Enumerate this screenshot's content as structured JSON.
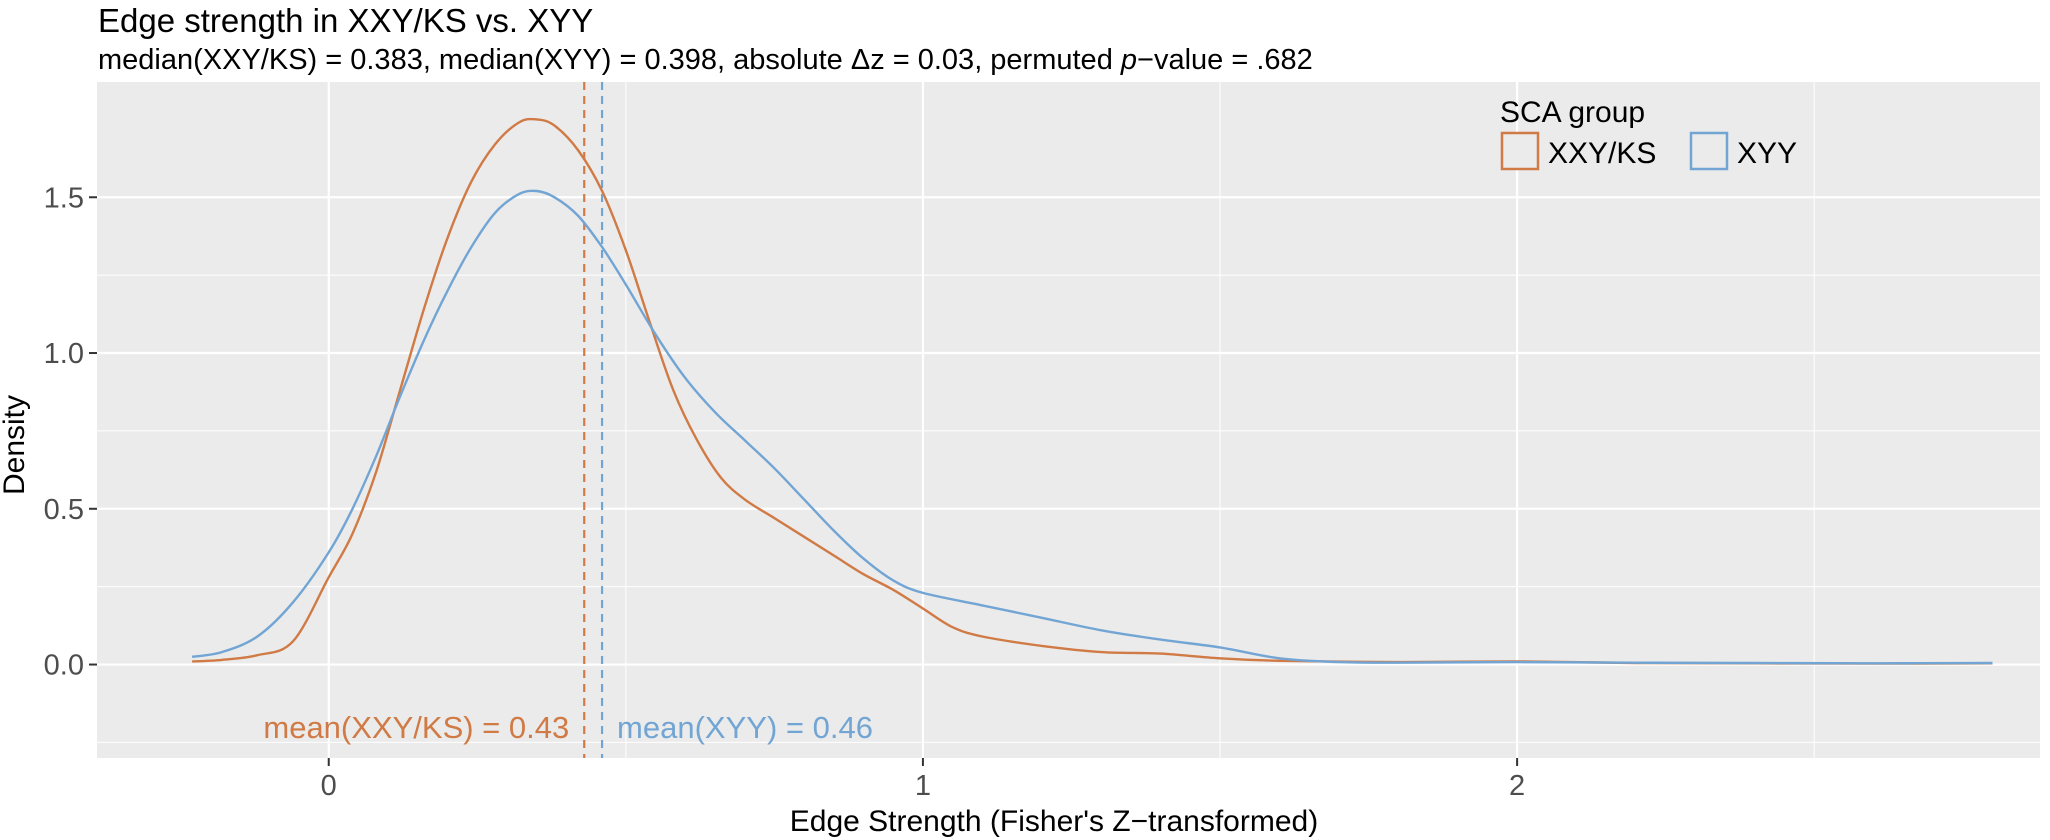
{
  "chart_data": {
    "type": "area",
    "title": "Edge strength in XXY/KS vs. XYY",
    "subtitle": {
      "pre": "median(XXY/KS) = 0.383, median(XYY) = 0.398, absolute Δz = 0.03, permuted ",
      "p_italic": "p",
      "post": "−value = .682"
    },
    "xlabel": "Edge Strength (Fisher's Z−transformed)",
    "ylabel": "Density",
    "xlim": [
      -0.39,
      2.88
    ],
    "ylim": [
      -0.3,
      1.87
    ],
    "xticks": [
      0,
      1,
      2
    ],
    "xtick_labels": [
      "0",
      "1",
      "2"
    ],
    "yticks": [
      0.0,
      0.5,
      1.0,
      1.5
    ],
    "ytick_labels": [
      "0.0",
      "0.5",
      "1.0",
      "1.5"
    ],
    "grid": true,
    "legend": {
      "title": "SCA group",
      "position": "top-right"
    },
    "colors": {
      "panel": "#ebebeb",
      "grid": "#ffffff",
      "axis_text": "#4d4d4d"
    },
    "series": [
      {
        "name": "XXY/KS",
        "color": "#d07a45",
        "mean": 0.43,
        "mean_label": "mean(XXY/KS) = 0.43",
        "points": [
          [
            -0.23,
            0.01
          ],
          [
            -0.18,
            0.015
          ],
          [
            -0.12,
            0.03
          ],
          [
            -0.06,
            0.075
          ],
          [
            0.0,
            0.28
          ],
          [
            0.04,
            0.42
          ],
          [
            0.08,
            0.62
          ],
          [
            0.12,
            0.88
          ],
          [
            0.16,
            1.14
          ],
          [
            0.2,
            1.37
          ],
          [
            0.24,
            1.55
          ],
          [
            0.28,
            1.67
          ],
          [
            0.32,
            1.74
          ],
          [
            0.35,
            1.75
          ],
          [
            0.38,
            1.73
          ],
          [
            0.42,
            1.65
          ],
          [
            0.46,
            1.52
          ],
          [
            0.5,
            1.33
          ],
          [
            0.54,
            1.1
          ],
          [
            0.58,
            0.88
          ],
          [
            0.62,
            0.72
          ],
          [
            0.66,
            0.6
          ],
          [
            0.7,
            0.53
          ],
          [
            0.75,
            0.47
          ],
          [
            0.8,
            0.41
          ],
          [
            0.85,
            0.35
          ],
          [
            0.9,
            0.29
          ],
          [
            0.95,
            0.24
          ],
          [
            1.0,
            0.18
          ],
          [
            1.05,
            0.12
          ],
          [
            1.1,
            0.09
          ],
          [
            1.2,
            0.06
          ],
          [
            1.3,
            0.04
          ],
          [
            1.4,
            0.035
          ],
          [
            1.5,
            0.02
          ],
          [
            1.6,
            0.012
          ],
          [
            1.8,
            0.008
          ],
          [
            2.0,
            0.01
          ],
          [
            2.2,
            0.005
          ],
          [
            2.4,
            0.004
          ],
          [
            2.6,
            0.003
          ],
          [
            2.8,
            0.004
          ]
        ]
      },
      {
        "name": "XYY",
        "color": "#72a5d4",
        "mean": 0.46,
        "mean_label": "mean(XYY) = 0.46",
        "points": [
          [
            -0.23,
            0.025
          ],
          [
            -0.18,
            0.04
          ],
          [
            -0.12,
            0.09
          ],
          [
            -0.06,
            0.2
          ],
          [
            0.0,
            0.36
          ],
          [
            0.04,
            0.5
          ],
          [
            0.08,
            0.67
          ],
          [
            0.12,
            0.86
          ],
          [
            0.16,
            1.04
          ],
          [
            0.2,
            1.2
          ],
          [
            0.24,
            1.34
          ],
          [
            0.28,
            1.45
          ],
          [
            0.32,
            1.51
          ],
          [
            0.35,
            1.52
          ],
          [
            0.38,
            1.5
          ],
          [
            0.42,
            1.44
          ],
          [
            0.46,
            1.34
          ],
          [
            0.5,
            1.22
          ],
          [
            0.55,
            1.06
          ],
          [
            0.6,
            0.92
          ],
          [
            0.65,
            0.81
          ],
          [
            0.7,
            0.72
          ],
          [
            0.75,
            0.63
          ],
          [
            0.8,
            0.53
          ],
          [
            0.85,
            0.43
          ],
          [
            0.9,
            0.34
          ],
          [
            0.95,
            0.27
          ],
          [
            1.0,
            0.23
          ],
          [
            1.1,
            0.19
          ],
          [
            1.2,
            0.15
          ],
          [
            1.3,
            0.11
          ],
          [
            1.4,
            0.08
          ],
          [
            1.5,
            0.055
          ],
          [
            1.6,
            0.02
          ],
          [
            1.7,
            0.008
          ],
          [
            1.8,
            0.006
          ],
          [
            2.0,
            0.008
          ],
          [
            2.2,
            0.006
          ],
          [
            2.4,
            0.005
          ],
          [
            2.6,
            0.004
          ],
          [
            2.8,
            0.005
          ]
        ]
      }
    ]
  }
}
